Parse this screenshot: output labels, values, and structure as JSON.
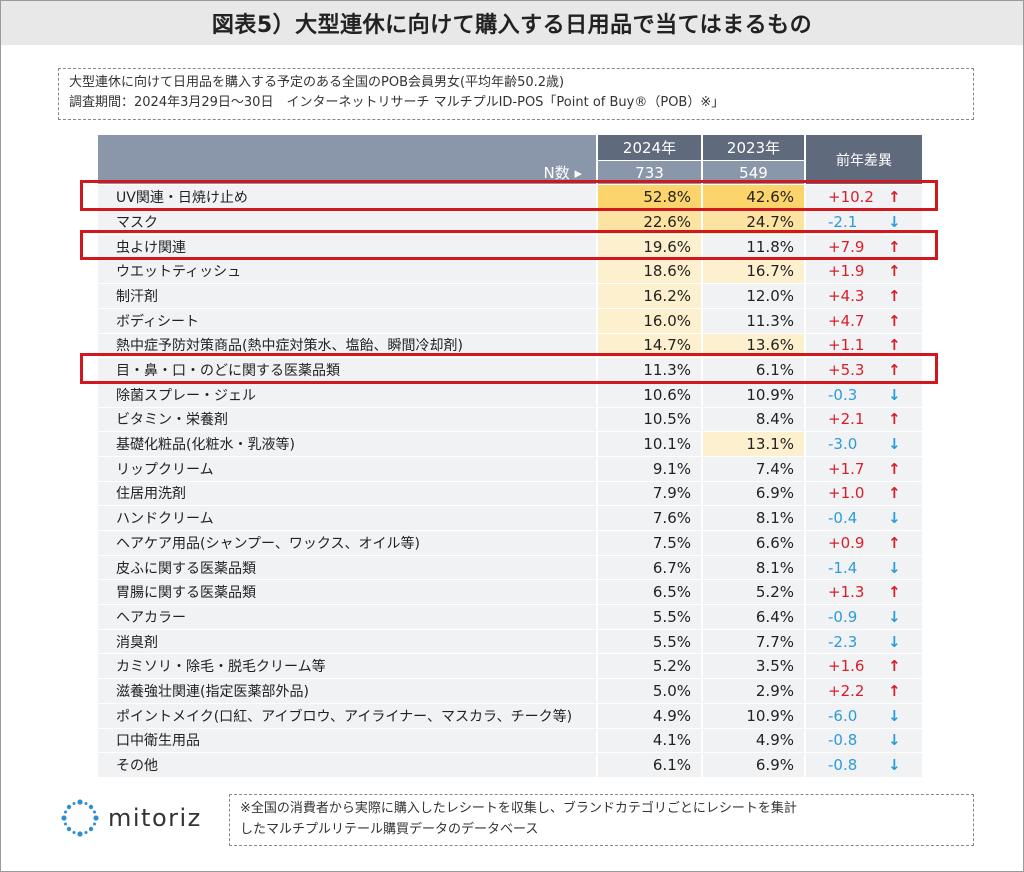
{
  "title": "図表5）大型連休に向けて購入する日用品で当てはまるもの",
  "info": {
    "line1": "大型連休に向けて日用品を購入する予定のある全国のPOB会員男女(平均年齢50.2歳)",
    "line2": "調査期間：2024年3月29日～30日　インターネットリサーチ マルチプルID-POS「Point of Buy®（POB）※」"
  },
  "table": {
    "year1": "2024年",
    "year2": "2023年",
    "diff_header": "前年差異",
    "n_label": "N数 ▸",
    "n1": "733",
    "n2": "549",
    "rows": [
      {
        "label": "UV関連・日焼け止め",
        "v1": "52.8%",
        "v2": "42.6%",
        "diff": "+10.2",
        "arrow": "↑"
      },
      {
        "label": "マスク",
        "v1": "22.6%",
        "v2": "24.7%",
        "diff": "-2.1",
        "arrow": "↓"
      },
      {
        "label": "虫よけ関連",
        "v1": "19.6%",
        "v2": "11.8%",
        "diff": "+7.9",
        "arrow": "↑"
      },
      {
        "label": "ウエットティッシュ",
        "v1": "18.6%",
        "v2": "16.7%",
        "diff": "+1.9",
        "arrow": "↑"
      },
      {
        "label": "制汗剤",
        "v1": "16.2%",
        "v2": "12.0%",
        "diff": "+4.3",
        "arrow": "↑"
      },
      {
        "label": "ボディシート",
        "v1": "16.0%",
        "v2": "11.3%",
        "diff": "+4.7",
        "arrow": "↑"
      },
      {
        "label": "熱中症予防対策商品(熱中症対策水、塩飴、瞬間冷却剤)",
        "v1": "14.7%",
        "v2": "13.6%",
        "diff": "+1.1",
        "arrow": "↑"
      },
      {
        "label": "目・鼻・口・のどに関する医薬品類",
        "v1": "11.3%",
        "v2": "6.1%",
        "diff": "+5.3",
        "arrow": "↑"
      },
      {
        "label": "除菌スプレー・ジェル",
        "v1": "10.6%",
        "v2": "10.9%",
        "diff": "-0.3",
        "arrow": "↓"
      },
      {
        "label": "ビタミン・栄養剤",
        "v1": "10.5%",
        "v2": "8.4%",
        "diff": "+2.1",
        "arrow": "↑"
      },
      {
        "label": "基礎化粧品(化粧水・乳液等)",
        "v1": "10.1%",
        "v2": "13.1%",
        "diff": "-3.0",
        "arrow": "↓"
      },
      {
        "label": "リップクリーム",
        "v1": "9.1%",
        "v2": "7.4%",
        "diff": "+1.7",
        "arrow": "↑"
      },
      {
        "label": "住居用洗剤",
        "v1": "7.9%",
        "v2": "6.9%",
        "diff": "+1.0",
        "arrow": "↑"
      },
      {
        "label": "ハンドクリーム",
        "v1": "7.6%",
        "v2": "8.1%",
        "diff": "-0.4",
        "arrow": "↓"
      },
      {
        "label": "ヘアケア用品(シャンプー、ワックス、オイル等)",
        "v1": "7.5%",
        "v2": "6.6%",
        "diff": "+0.9",
        "arrow": "↑"
      },
      {
        "label": "皮ふに関する医薬品類",
        "v1": "6.7%",
        "v2": "8.1%",
        "diff": "-1.4",
        "arrow": "↓"
      },
      {
        "label": "胃腸に関する医薬品類",
        "v1": "6.5%",
        "v2": "5.2%",
        "diff": "+1.3",
        "arrow": "↑"
      },
      {
        "label": "ヘアカラー",
        "v1": "5.5%",
        "v2": "6.4%",
        "diff": "-0.9",
        "arrow": "↓"
      },
      {
        "label": "消臭剤",
        "v1": "5.5%",
        "v2": "7.7%",
        "diff": "-2.3",
        "arrow": "↓"
      },
      {
        "label": "カミソリ・除毛・脱毛クリーム等",
        "v1": "5.2%",
        "v2": "3.5%",
        "diff": "+1.6",
        "arrow": "↑"
      },
      {
        "label": "滋養強壮関連(指定医薬部外品)",
        "v1": "5.0%",
        "v2": "2.9%",
        "diff": "+2.2",
        "arrow": "↑"
      },
      {
        "label": "ポイントメイク(口紅、アイブロウ、アイライナー、マスカラ、チーク等)",
        "v1": "4.9%",
        "v2": "10.9%",
        "diff": "-6.0",
        "arrow": "↓"
      },
      {
        "label": "口中衛生用品",
        "v1": "4.1%",
        "v2": "4.9%",
        "diff": "-0.8",
        "arrow": "↓"
      },
      {
        "label": "その他",
        "v1": "6.1%",
        "v2": "6.9%",
        "diff": "-0.8",
        "arrow": "↓"
      }
    ]
  },
  "chart_data": {
    "type": "table",
    "columns": [
      "2024年",
      "2023年",
      "前年差異"
    ],
    "n": {
      "2024年": 733,
      "2023年": 549
    },
    "categories": [
      "UV関連・日焼け止め",
      "マスク",
      "虫よけ関連",
      "ウエットティッシュ",
      "制汗剤",
      "ボディシート",
      "熱中症予防対策商品(熱中症対策水、塩飴、瞬間冷却剤)",
      "目・鼻・口・のどに関する医薬品類",
      "除菌スプレー・ジェル",
      "ビタミン・栄養剤",
      "基礎化粧品(化粧水・乳液等)",
      "リップクリーム",
      "住居用洗剤",
      "ハンドクリーム",
      "ヘアケア用品(シャンプー、ワックス、オイル等)",
      "皮ふに関する医薬品類",
      "胃腸に関する医薬品類",
      "ヘアカラー",
      "消臭剤",
      "カミソリ・除毛・脱毛クリーム等",
      "滋養強壮関連(指定医薬部外品)",
      "ポイントメイク(口紅、アイブロウ、アイライナー、マスカラ、チーク等)",
      "口中衛生用品",
      "その他"
    ],
    "series": [
      {
        "name": "2024年",
        "values": [
          52.8,
          22.6,
          19.6,
          18.6,
          16.2,
          16.0,
          14.7,
          11.3,
          10.6,
          10.5,
          10.1,
          9.1,
          7.9,
          7.6,
          7.5,
          6.7,
          6.5,
          5.5,
          5.5,
          5.2,
          5.0,
          4.9,
          4.1,
          6.1
        ]
      },
      {
        "name": "2023年",
        "values": [
          42.6,
          24.7,
          11.8,
          16.7,
          12.0,
          11.3,
          13.6,
          6.1,
          10.9,
          8.4,
          13.1,
          7.4,
          6.9,
          8.1,
          6.6,
          8.1,
          5.2,
          6.4,
          7.7,
          3.5,
          2.9,
          10.9,
          4.9,
          6.9
        ]
      },
      {
        "name": "前年差異",
        "values": [
          10.2,
          -2.1,
          7.9,
          1.9,
          4.3,
          4.7,
          1.1,
          5.3,
          -0.3,
          2.1,
          -3.0,
          1.7,
          1.0,
          -0.4,
          0.9,
          -1.4,
          1.3,
          -0.9,
          -2.3,
          1.6,
          2.2,
          -6.0,
          -0.8,
          -0.8
        ]
      }
    ],
    "highlighted_rows": [
      "UV関連・日焼け止め",
      "虫よけ関連",
      "目・鼻・口・のどに関する医薬品類"
    ],
    "colors": {
      "up": "#d81e2a",
      "down": "#2e9bd6",
      "header": "#5f6b7c",
      "highlight_border": "#d0191f"
    }
  },
  "footer": {
    "logo_text": "mitoriz",
    "note_line1": "※全国の消費者から実際に購入したレシートを収集し、ブランドカテゴリごとにレシートを集計",
    "note_line2": "したマルチプルリテール購買データのデータベース"
  }
}
